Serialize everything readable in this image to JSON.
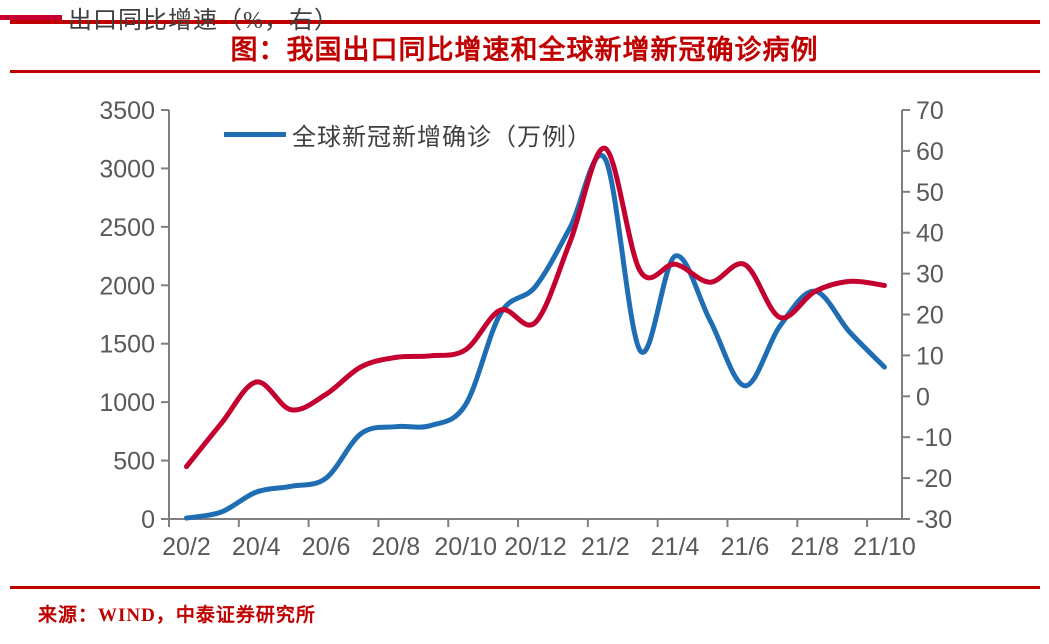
{
  "header": {
    "title": "图：我国出口同比增速和全球新增新冠确诊病例"
  },
  "footer": {
    "source": "来源：WIND，中泰证券研究所"
  },
  "colors": {
    "accent_red": "#c00000",
    "series_blue": "#1f6eb4",
    "series_red": "#c3002f",
    "axis_line": "#7f7f7f",
    "tick_text": "#595959"
  },
  "chart_data": {
    "type": "line",
    "title": "图：我国出口同比增速和全球新增新冠确诊病例",
    "categories": [
      "20/2",
      "20/3",
      "20/4",
      "20/5",
      "20/6",
      "20/7",
      "20/8",
      "20/9",
      "20/10",
      "20/11",
      "20/12",
      "21/1",
      "21/2",
      "21/3",
      "21/4",
      "21/5",
      "21/6",
      "21/7",
      "21/8",
      "21/9",
      "21/10"
    ],
    "x_tick_labels": [
      "20/2",
      "20/4",
      "20/6",
      "20/8",
      "20/10",
      "20/12",
      "21/2",
      "21/4",
      "21/6",
      "21/8",
      "21/10"
    ],
    "series": [
      {
        "name": "全球新冠新增确诊（万例）",
        "axis": "left",
        "color_key": "series_blue",
        "values": [
          8,
          60,
          230,
          280,
          350,
          730,
          790,
          800,
          980,
          1760,
          1990,
          2500,
          3080,
          1440,
          2250,
          1700,
          1140,
          1650,
          1950,
          1600,
          1300
        ]
      },
      {
        "name": "出口同比增速（%，右）",
        "axis": "right",
        "color_key": "series_red",
        "values": [
          -17.2,
          -6.6,
          3.5,
          -3.3,
          0.5,
          7.2,
          9.5,
          9.9,
          11.4,
          21.1,
          18.1,
          38,
          60.6,
          30.6,
          32.3,
          27.9,
          32.2,
          19.3,
          25.6,
          28.1,
          27.1
        ]
      }
    ],
    "left_axis": {
      "min": 0,
      "max": 3500,
      "step": 500,
      "ticks": [
        0,
        500,
        1000,
        1500,
        2000,
        2500,
        3000,
        3500
      ]
    },
    "right_axis": {
      "min": -30,
      "max": 70,
      "step": 10,
      "ticks": [
        -30,
        -20,
        -10,
        0,
        10,
        20,
        30,
        40,
        50,
        60,
        70
      ]
    },
    "legend_position": "top-left-inside",
    "grid": "off"
  }
}
